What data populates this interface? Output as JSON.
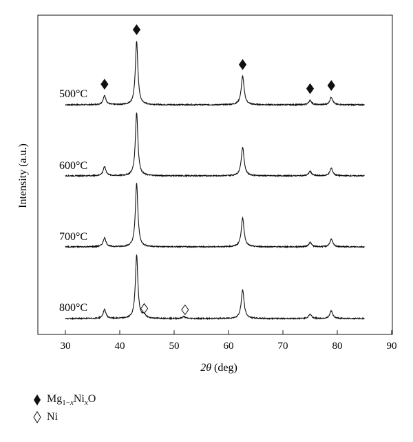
{
  "chart_data": {
    "type": "line",
    "xlabel_italic": "2θ",
    "xlabel_rest": " (deg)",
    "ylabel": "Intensity (a.u.)",
    "xlim": [
      30,
      90
    ],
    "x_ticks": [
      30,
      40,
      50,
      60,
      70,
      80,
      90
    ],
    "x_range_data": [
      30,
      85
    ],
    "grid": false,
    "series": [
      {
        "name": "500°C",
        "peaks": [
          {
            "x": 37.2,
            "height": 0.14
          },
          {
            "x": 43.1,
            "height": 1.0
          },
          {
            "x": 62.6,
            "height": 0.45
          },
          {
            "x": 75.0,
            "height": 0.07
          },
          {
            "x": 78.9,
            "height": 0.12
          }
        ]
      },
      {
        "name": "600°C",
        "peaks": [
          {
            "x": 37.2,
            "height": 0.14
          },
          {
            "x": 43.1,
            "height": 1.0
          },
          {
            "x": 62.6,
            "height": 0.45
          },
          {
            "x": 75.0,
            "height": 0.07
          },
          {
            "x": 78.9,
            "height": 0.12
          }
        ]
      },
      {
        "name": "700°C",
        "peaks": [
          {
            "x": 37.2,
            "height": 0.14
          },
          {
            "x": 43.1,
            "height": 1.0
          },
          {
            "x": 62.6,
            "height": 0.45
          },
          {
            "x": 75.0,
            "height": 0.07
          },
          {
            "x": 78.9,
            "height": 0.12
          }
        ]
      },
      {
        "name": "800°C",
        "peaks": [
          {
            "x": 37.2,
            "height": 0.14
          },
          {
            "x": 43.1,
            "height": 1.0
          },
          {
            "x": 44.5,
            "height": 0.05
          },
          {
            "x": 51.8,
            "height": 0.03
          },
          {
            "x": 62.6,
            "height": 0.45
          },
          {
            "x": 75.0,
            "height": 0.07
          },
          {
            "x": 78.9,
            "height": 0.12
          }
        ]
      }
    ],
    "markers": [
      {
        "series": "500°C",
        "x": 37.2,
        "phase": "MgNiO",
        "symbol": "filled-diamond"
      },
      {
        "series": "500°C",
        "x": 43.1,
        "phase": "MgNiO",
        "symbol": "filled-diamond"
      },
      {
        "series": "500°C",
        "x": 62.6,
        "phase": "MgNiO",
        "symbol": "filled-diamond"
      },
      {
        "series": "500°C",
        "x": 75.0,
        "phase": "MgNiO",
        "symbol": "filled-diamond"
      },
      {
        "series": "500°C",
        "x": 78.9,
        "phase": "MgNiO",
        "symbol": "filled-diamond"
      },
      {
        "series": "800°C",
        "x": 44.5,
        "phase": "Ni",
        "symbol": "open-diamond"
      },
      {
        "series": "800°C",
        "x": 52.0,
        "phase": "Ni",
        "symbol": "open-diamond"
      }
    ],
    "legend": {
      "position": "bottom-left",
      "entries": [
        {
          "symbol": "filled-diamond",
          "main": "Mg",
          "sub1": "1−",
          "sub1_italic": "x",
          "mid": "Ni",
          "sub2_italic": "x",
          "tail": "O"
        },
        {
          "symbol": "open-diamond",
          "main": "Ni"
        }
      ]
    }
  }
}
